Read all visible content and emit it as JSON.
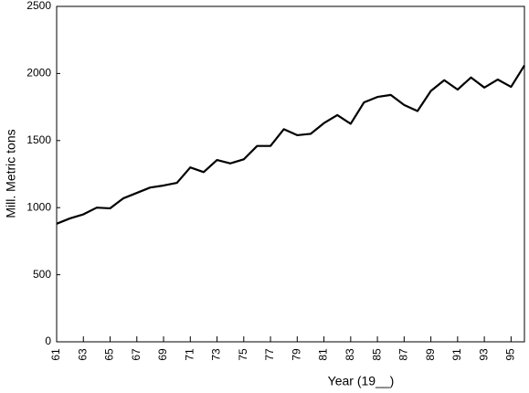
{
  "chart_data": {
    "type": "line",
    "x_label": "Year (19__)",
    "y_label": "Mill. Metric tons",
    "x": [
      61,
      62,
      63,
      64,
      65,
      66,
      67,
      68,
      69,
      70,
      71,
      72,
      73,
      74,
      75,
      76,
      77,
      78,
      79,
      80,
      81,
      82,
      83,
      84,
      85,
      86,
      87,
      88,
      89,
      90,
      91,
      92,
      93,
      94,
      95,
      96
    ],
    "series": [
      {
        "color": "#000000",
        "values": [
          880,
          920,
          950,
          1000,
          995,
          1070,
          1110,
          1150,
          1165,
          1185,
          1300,
          1265,
          1355,
          1330,
          1360,
          1460,
          1460,
          1585,
          1540,
          1550,
          1630,
          1690,
          1625,
          1785,
          1825,
          1840,
          1765,
          1720,
          1870,
          1950,
          1880,
          1970,
          1895,
          1955,
          1900,
          2060
        ]
      }
    ],
    "xlim": [
      61,
      96
    ],
    "xticks": [
      61,
      63,
      65,
      67,
      69,
      71,
      73,
      75,
      77,
      79,
      81,
      83,
      85,
      87,
      89,
      91,
      93,
      95
    ],
    "ylim": [
      0,
      2500
    ],
    "yticks": [
      0,
      500,
      1000,
      1500,
      2000,
      2500
    ],
    "grid": false
  }
}
